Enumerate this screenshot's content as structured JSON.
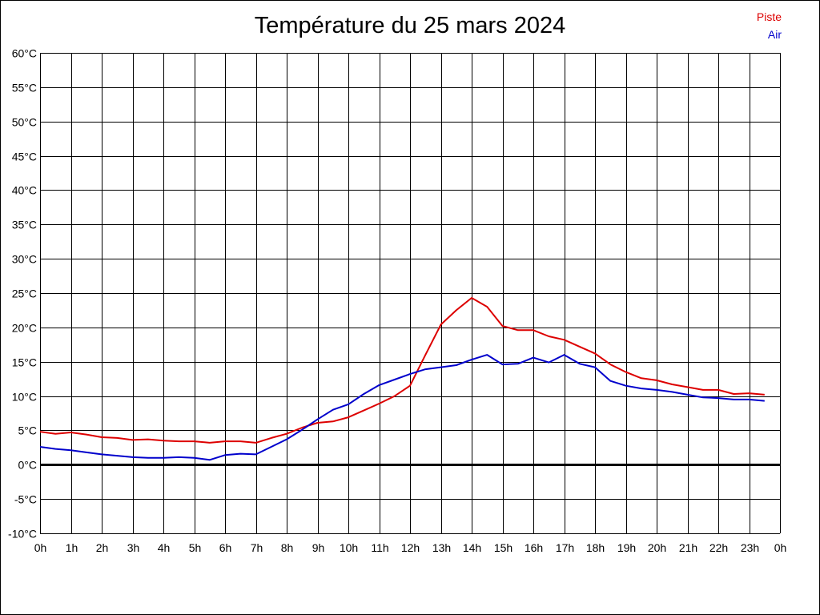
{
  "chart_data": {
    "type": "line",
    "title": "Température du 25 mars 2024",
    "xlabel": "",
    "ylabel": "",
    "x_tick_labels": [
      "0h",
      "1h",
      "2h",
      "3h",
      "4h",
      "5h",
      "6h",
      "7h",
      "8h",
      "9h",
      "10h",
      "11h",
      "12h",
      "13h",
      "14h",
      "15h",
      "16h",
      "17h",
      "18h",
      "19h",
      "20h",
      "21h",
      "22h",
      "23h",
      "0h"
    ],
    "y_tick_labels": [
      "60°C",
      "55°C",
      "50°C",
      "45°C",
      "40°C",
      "35°C",
      "30°C",
      "25°C",
      "20°C",
      "15°C",
      "10°C",
      "5°C",
      "0°C",
      "-5°C",
      "-10°C"
    ],
    "xlim": [
      0,
      24
    ],
    "ylim": [
      -10,
      60
    ],
    "grid": true,
    "legend_position": "top-right",
    "x": [
      0,
      0.5,
      1,
      1.5,
      2,
      2.5,
      3,
      3.5,
      4,
      4.5,
      5,
      5.5,
      6,
      6.5,
      7,
      7.5,
      8,
      8.5,
      9,
      9.5,
      10,
      10.5,
      11,
      11.5,
      12,
      12.5,
      13,
      13.5,
      14,
      14.5,
      15,
      15.5,
      16,
      16.5,
      17,
      17.5,
      18,
      18.5,
      19,
      19.5,
      20,
      20.5,
      21,
      21.5,
      22,
      22.5,
      23,
      23.5
    ],
    "series": [
      {
        "name": "Piste",
        "color": "#dd0000",
        "values": [
          4.8,
          4.5,
          4.7,
          4.4,
          4.0,
          3.9,
          3.6,
          3.7,
          3.5,
          3.4,
          3.4,
          3.2,
          3.4,
          3.4,
          3.2,
          3.9,
          4.5,
          5.4,
          6.1,
          6.3,
          6.9,
          7.9,
          8.9,
          10.0,
          11.5,
          16.0,
          20.4,
          22.5,
          24.3,
          23.0,
          20.2,
          19.6,
          19.6,
          18.7,
          18.2,
          17.2,
          16.2,
          14.6,
          13.5,
          12.6,
          12.3,
          11.7,
          11.3,
          10.9,
          10.9,
          10.3,
          10.4,
          10.2
        ]
      },
      {
        "name": "Air",
        "color": "#0000cc",
        "values": [
          2.6,
          2.3,
          2.1,
          1.8,
          1.5,
          1.3,
          1.1,
          1.0,
          1.0,
          1.1,
          1.0,
          0.7,
          1.4,
          1.6,
          1.5,
          2.6,
          3.7,
          5.1,
          6.6,
          8.0,
          8.8,
          10.3,
          11.6,
          12.4,
          13.2,
          13.9,
          14.2,
          14.5,
          15.3,
          16.0,
          14.6,
          14.7,
          15.6,
          14.9,
          16.0,
          14.7,
          14.2,
          12.2,
          11.5,
          11.1,
          10.9,
          10.6,
          10.2,
          9.8,
          9.7,
          9.5,
          9.5,
          9.3
        ]
      }
    ]
  }
}
